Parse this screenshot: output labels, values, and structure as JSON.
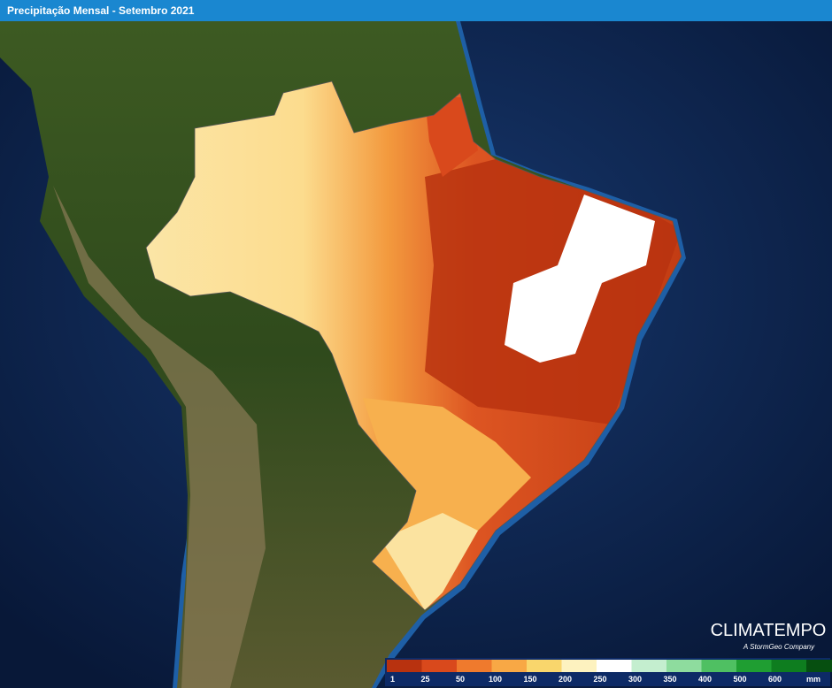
{
  "header": {
    "title": "Precipitação Mensal - Setembro 2021"
  },
  "logo": {
    "name": "CLIMATEMPO",
    "tagline": "A StormGeo Company"
  },
  "legend": {
    "labels": [
      1,
      25,
      50,
      100,
      150,
      200,
      250,
      300,
      350,
      400,
      500,
      600
    ],
    "unit": "mm",
    "colors": [
      "#b8320f",
      "#d9491c",
      "#ef7a2d",
      "#f8a845",
      "#f9d66c",
      "#fdf2bf",
      "#ffffff",
      "#c4eecf",
      "#8edc9e",
      "#4fc062",
      "#1f9e32",
      "#0e7d1f",
      "#064f10"
    ]
  }
}
